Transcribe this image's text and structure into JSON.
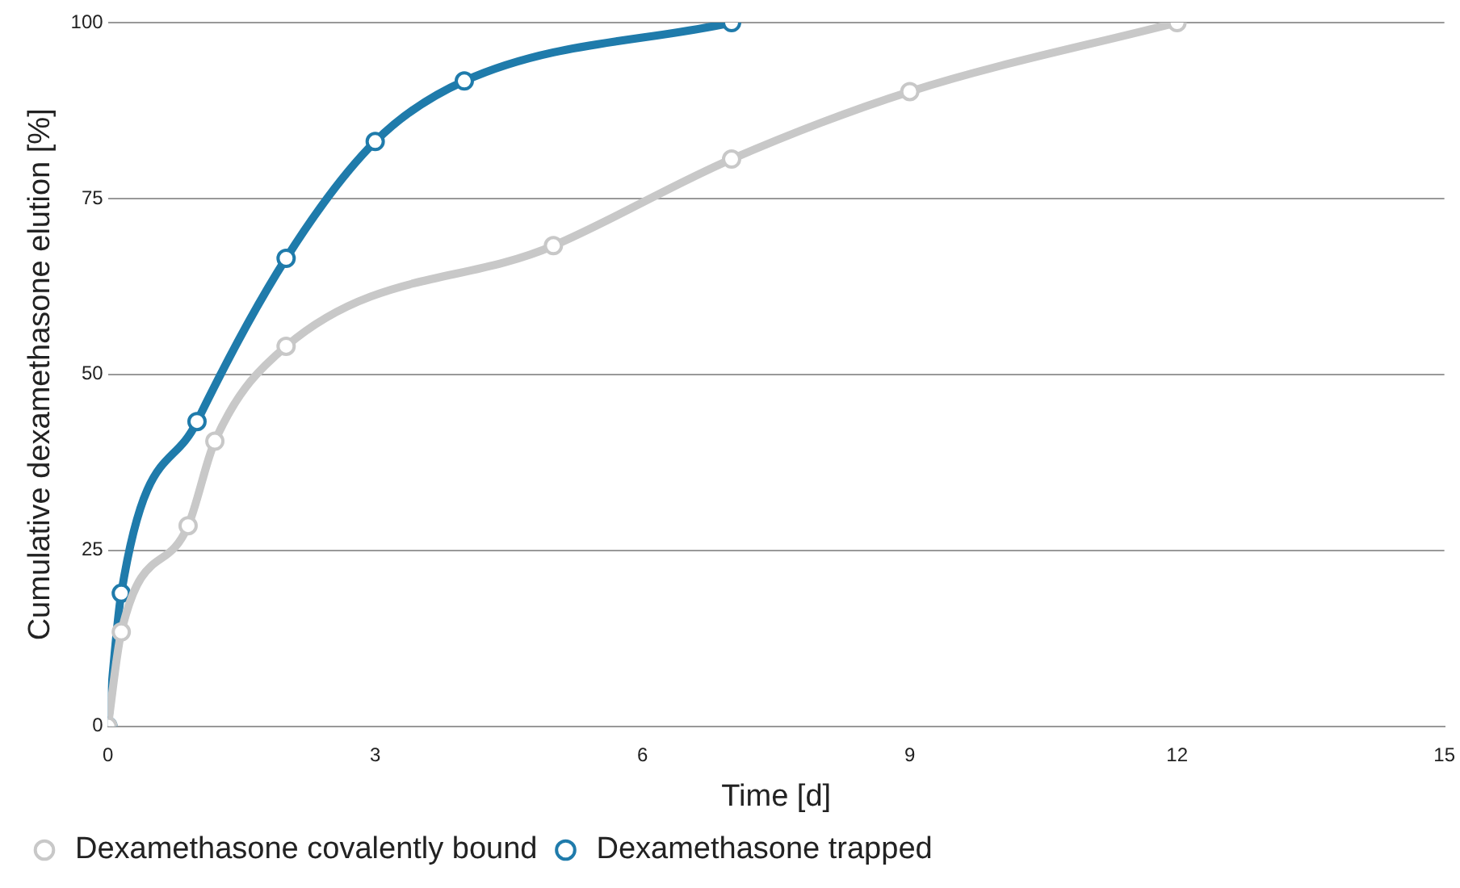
{
  "chart_data": {
    "type": "line",
    "xlabel": "Time [d]",
    "ylabel": "Cumulative dexamethasone elution [%]",
    "xlim": [
      0,
      15
    ],
    "xticks": [
      0,
      3,
      6,
      9,
      12,
      15
    ],
    "ylim": [
      0,
      100
    ],
    "yticks": [
      0,
      25,
      50,
      75,
      100
    ],
    "grid": "y",
    "legend": "bottom left",
    "marker": "circle",
    "line_style": "solid",
    "series": [
      {
        "name": "Dexamethasone covalently bound",
        "color": "#c8c8c8",
        "x": [
          0,
          0.15,
          0.9,
          1.2,
          2,
          5,
          7,
          9,
          12
        ],
        "values": [
          0,
          13.4,
          28.5,
          40.5,
          54,
          68.3,
          80.6,
          90.2,
          100
        ]
      },
      {
        "name": "Dexamethasone trapped",
        "color": "#1f7bab",
        "x": [
          0,
          0.15,
          1,
          2,
          3,
          4,
          7
        ],
        "values": [
          0,
          18.9,
          43.3,
          66.5,
          83.1,
          91.7,
          100
        ]
      }
    ]
  }
}
